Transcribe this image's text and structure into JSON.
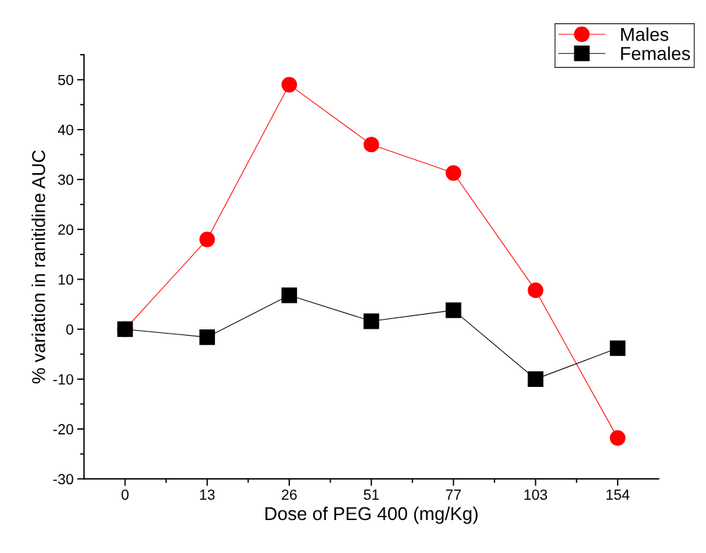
{
  "chart_data": {
    "type": "line",
    "xlabel": "Dose of PEG 400 (mg/Kg)",
    "ylabel": "% variation in ranitidine AUC",
    "categories": [
      "0",
      "13",
      "26",
      "51",
      "77",
      "103",
      "154"
    ],
    "series": [
      {
        "name": "Males",
        "color": "#ff0000",
        "marker": "circle",
        "values": [
          0,
          18,
          49,
          37,
          31.3,
          7.8,
          -21.8
        ]
      },
      {
        "name": "Females",
        "color": "#000000",
        "marker": "square",
        "values": [
          0,
          -1.6,
          6.8,
          1.6,
          3.8,
          -10,
          -3.8
        ]
      }
    ],
    "ylim": [
      -30,
      55
    ],
    "yticks": [
      -30,
      -20,
      -10,
      0,
      10,
      20,
      30,
      40,
      50
    ],
    "grid": false,
    "legend": "top right",
    "line_style": "solid"
  }
}
